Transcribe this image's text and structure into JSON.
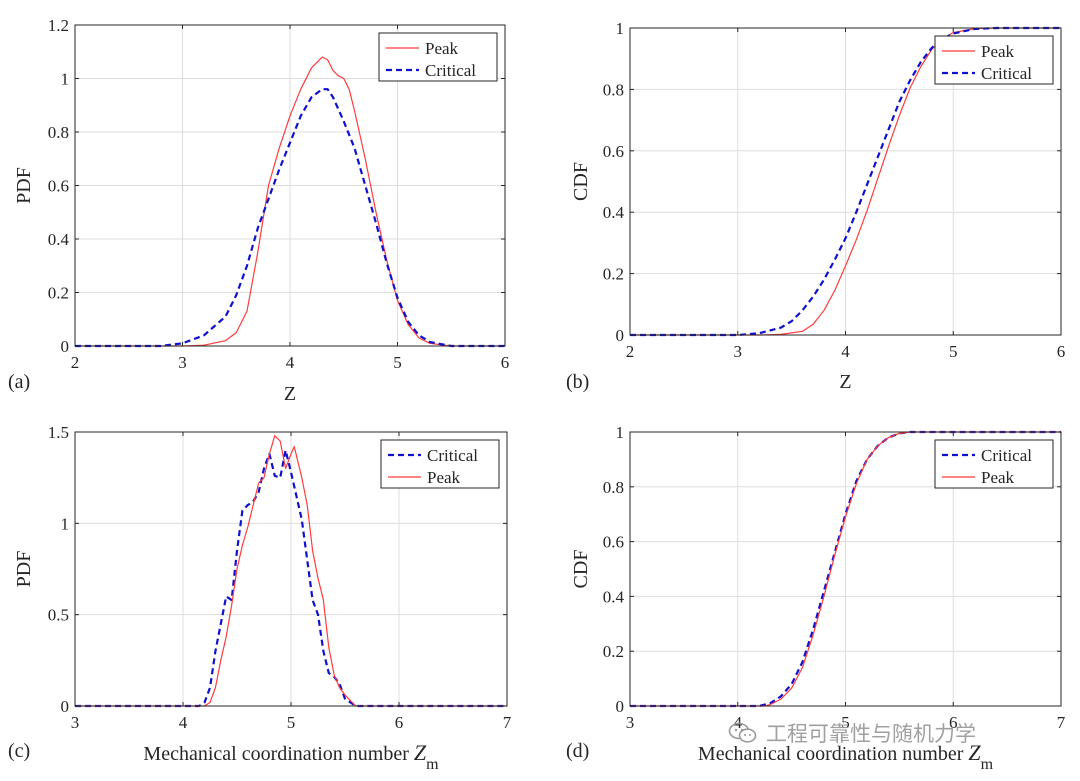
{
  "colors": {
    "peak": "#ff3b3b",
    "critical": "#1010d0",
    "grid": "#dddddd",
    "axis": "#262626"
  },
  "watermark": {
    "text": "工程可靠性与随机力学",
    "icon": "wechat-icon"
  },
  "chart_data": [
    {
      "id": "a",
      "panel_label": "(a)",
      "type": "line",
      "xlabel": "Z",
      "xlabel_sub": "",
      "ylabel": "PDF",
      "xlim": [
        2,
        6
      ],
      "ylim": [
        0,
        1.2
      ],
      "xticks": [
        2,
        3,
        4,
        5,
        6
      ],
      "xtick_labels": [
        "2",
        "3",
        "4",
        "5",
        "6"
      ],
      "yticks": [
        0,
        0.2,
        0.4,
        0.6,
        0.8,
        1,
        1.2
      ],
      "ytick_labels": [
        "0",
        "0.2",
        "0.4",
        "0.6",
        "0.8",
        "1",
        "1.2"
      ],
      "grid": true,
      "legend_position": "top-right",
      "series": [
        {
          "name": "Peak",
          "style": "solid",
          "x": [
            2.0,
            3.0,
            3.2,
            3.4,
            3.5,
            3.6,
            3.7,
            3.8,
            3.9,
            4.0,
            4.1,
            4.2,
            4.3,
            4.35,
            4.4,
            4.45,
            4.5,
            4.55,
            4.6,
            4.7,
            4.8,
            4.9,
            5.0,
            5.1,
            5.2,
            5.3,
            5.5,
            6.0
          ],
          "y": [
            0.0,
            0.0,
            0.003,
            0.02,
            0.05,
            0.13,
            0.35,
            0.6,
            0.74,
            0.86,
            0.96,
            1.04,
            1.08,
            1.07,
            1.03,
            1.01,
            1.0,
            0.96,
            0.88,
            0.7,
            0.5,
            0.32,
            0.17,
            0.08,
            0.03,
            0.01,
            0.0,
            0.0
          ]
        },
        {
          "name": "Critical",
          "style": "dashed",
          "x": [
            2.0,
            2.8,
            3.0,
            3.2,
            3.4,
            3.5,
            3.6,
            3.7,
            3.8,
            3.9,
            4.0,
            4.1,
            4.2,
            4.3,
            4.35,
            4.4,
            4.5,
            4.6,
            4.7,
            4.8,
            4.9,
            5.0,
            5.1,
            5.2,
            5.3,
            5.5,
            6.0
          ],
          "y": [
            0.0,
            0.0,
            0.01,
            0.04,
            0.11,
            0.19,
            0.3,
            0.44,
            0.55,
            0.66,
            0.76,
            0.86,
            0.93,
            0.96,
            0.96,
            0.93,
            0.84,
            0.74,
            0.6,
            0.46,
            0.31,
            0.18,
            0.09,
            0.04,
            0.015,
            0.0,
            0.0
          ]
        }
      ]
    },
    {
      "id": "b",
      "panel_label": "(b)",
      "type": "line",
      "xlabel": "Z",
      "xlabel_sub": "",
      "ylabel": "CDF",
      "xlim": [
        2,
        6
      ],
      "ylim": [
        0,
        1
      ],
      "xticks": [
        2,
        3,
        4,
        5,
        6
      ],
      "xtick_labels": [
        "2",
        "3",
        "4",
        "5",
        "6"
      ],
      "yticks": [
        0,
        0.2,
        0.4,
        0.6,
        0.8,
        1
      ],
      "ytick_labels": [
        "0",
        "0.2",
        "0.4",
        "0.6",
        "0.8",
        "1"
      ],
      "grid": true,
      "legend_position": "top-right",
      "series": [
        {
          "name": "Peak",
          "style": "solid",
          "x": [
            2.0,
            3.2,
            3.4,
            3.6,
            3.7,
            3.8,
            3.9,
            4.0,
            4.1,
            4.2,
            4.3,
            4.4,
            4.5,
            4.6,
            4.7,
            4.8,
            4.9,
            5.0,
            5.2,
            5.4,
            6.0
          ],
          "y": [
            0.0,
            0.0,
            0.002,
            0.012,
            0.035,
            0.08,
            0.145,
            0.225,
            0.31,
            0.405,
            0.51,
            0.615,
            0.715,
            0.805,
            0.875,
            0.93,
            0.965,
            0.985,
            0.998,
            1.0,
            1.0
          ]
        },
        {
          "name": "Critical",
          "style": "dashed",
          "x": [
            2.0,
            3.0,
            3.2,
            3.4,
            3.5,
            3.6,
            3.7,
            3.8,
            3.9,
            4.0,
            4.1,
            4.2,
            4.3,
            4.4,
            4.5,
            4.6,
            4.7,
            4.8,
            4.9,
            5.0,
            5.2,
            5.4,
            6.0
          ],
          "y": [
            0.0,
            0.0,
            0.006,
            0.024,
            0.045,
            0.08,
            0.125,
            0.18,
            0.245,
            0.315,
            0.4,
            0.49,
            0.58,
            0.67,
            0.76,
            0.83,
            0.89,
            0.935,
            0.965,
            0.982,
            0.997,
            1.0,
            1.0
          ]
        }
      ]
    },
    {
      "id": "c",
      "panel_label": "(c)",
      "type": "line",
      "xlabel": "Mechanical coordination number ",
      "xlabel_sub": "m",
      "xlabel_var": "Z",
      "ylabel": "PDF",
      "xlim": [
        3,
        7
      ],
      "ylim": [
        0,
        1.5
      ],
      "xticks": [
        3,
        4,
        5,
        6,
        7
      ],
      "xtick_labels": [
        "3",
        "4",
        "5",
        "6",
        "7"
      ],
      "yticks": [
        0,
        0.5,
        1,
        1.5
      ],
      "ytick_labels": [
        "0",
        "0.5",
        "1",
        "1.5"
      ],
      "grid": true,
      "legend_position": "top-right",
      "series": [
        {
          "name": "Critical",
          "style": "dashed",
          "x": [
            3.0,
            4.15,
            4.2,
            4.25,
            4.3,
            4.35,
            4.4,
            4.45,
            4.5,
            4.55,
            4.6,
            4.65,
            4.7,
            4.75,
            4.8,
            4.85,
            4.9,
            4.95,
            5.0,
            5.05,
            5.1,
            5.15,
            5.2,
            5.25,
            5.3,
            5.35,
            5.4,
            5.45,
            5.5,
            5.6,
            7.0
          ],
          "y": [
            0.0,
            0.0,
            0.02,
            0.1,
            0.3,
            0.45,
            0.6,
            0.58,
            0.85,
            1.07,
            1.1,
            1.12,
            1.17,
            1.3,
            1.38,
            1.26,
            1.25,
            1.4,
            1.28,
            1.15,
            1.02,
            0.8,
            0.58,
            0.5,
            0.3,
            0.18,
            0.16,
            0.12,
            0.04,
            0.0,
            0.0
          ]
        },
        {
          "name": "Peak",
          "style": "solid",
          "x": [
            3.0,
            4.2,
            4.25,
            4.3,
            4.35,
            4.4,
            4.45,
            4.5,
            4.55,
            4.6,
            4.65,
            4.7,
            4.75,
            4.8,
            4.85,
            4.9,
            4.95,
            5.0,
            5.03,
            5.1,
            5.15,
            5.2,
            5.25,
            5.3,
            5.35,
            5.4,
            5.45,
            5.5,
            5.6,
            7.0
          ],
          "y": [
            0.0,
            0.0,
            0.02,
            0.1,
            0.25,
            0.38,
            0.55,
            0.75,
            0.88,
            0.98,
            1.1,
            1.22,
            1.25,
            1.38,
            1.48,
            1.45,
            1.3,
            1.38,
            1.42,
            1.25,
            1.1,
            0.85,
            0.7,
            0.58,
            0.32,
            0.17,
            0.1,
            0.06,
            0.0,
            0.0
          ]
        }
      ]
    },
    {
      "id": "d",
      "panel_label": "(d)",
      "type": "line",
      "xlabel": "Mechanical coordination number ",
      "xlabel_sub": "m",
      "xlabel_var": "Z",
      "ylabel": "CDF",
      "xlim": [
        3,
        7
      ],
      "ylim": [
        0,
        1
      ],
      "xticks": [
        3,
        4,
        5,
        6,
        7
      ],
      "xtick_labels": [
        "3",
        "4",
        "5",
        "6",
        "7"
      ],
      "yticks": [
        0,
        0.2,
        0.4,
        0.6,
        0.8,
        1
      ],
      "ytick_labels": [
        "0",
        "0.2",
        "0.4",
        "0.6",
        "0.8",
        "1"
      ],
      "grid": true,
      "legend_position": "top-right",
      "series": [
        {
          "name": "Critical",
          "style": "dashed",
          "x": [
            3.0,
            4.2,
            4.3,
            4.4,
            4.5,
            4.6,
            4.7,
            4.8,
            4.9,
            5.0,
            5.1,
            5.2,
            5.3,
            5.4,
            5.5,
            5.6,
            7.0
          ],
          "y": [
            0.0,
            0.0,
            0.01,
            0.035,
            0.08,
            0.16,
            0.28,
            0.42,
            0.56,
            0.7,
            0.82,
            0.9,
            0.95,
            0.98,
            0.995,
            1.0,
            1.0
          ]
        },
        {
          "name": "Peak",
          "style": "solid",
          "x": [
            3.0,
            4.25,
            4.3,
            4.4,
            4.5,
            4.6,
            4.7,
            4.8,
            4.9,
            5.0,
            5.1,
            5.2,
            5.3,
            5.4,
            5.5,
            5.6,
            7.0
          ],
          "y": [
            0.0,
            0.0,
            0.005,
            0.025,
            0.065,
            0.14,
            0.26,
            0.4,
            0.55,
            0.69,
            0.81,
            0.9,
            0.95,
            0.98,
            0.995,
            1.0,
            1.0
          ]
        }
      ]
    }
  ]
}
